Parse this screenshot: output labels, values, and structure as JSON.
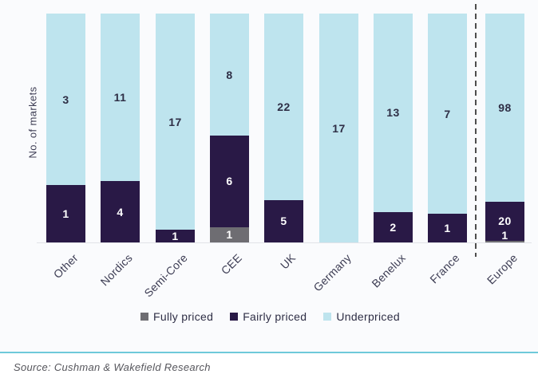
{
  "chart_data": {
    "type": "bar",
    "stacked": true,
    "normalized": "100percent",
    "title": "",
    "xlabel": "",
    "ylabel": "No. of markets",
    "categories": [
      "Other",
      "Nordics",
      "Semi-Core",
      "CEE",
      "UK",
      "Germany",
      "Benelux",
      "France",
      "Europe"
    ],
    "series": [
      {
        "name": "Fully priced",
        "color": "#6e6d72",
        "label_color": "#ffffff",
        "values": [
          0,
          0,
          0,
          1,
          0,
          0,
          0,
          0,
          1
        ]
      },
      {
        "name": "Fairly priced",
        "color": "#291946",
        "label_color": "#ffffff",
        "values": [
          1,
          4,
          1,
          6,
          5,
          0,
          2,
          1,
          20
        ]
      },
      {
        "name": "Underpriced",
        "color": "#bee4ee",
        "label_color": "#2e2e45",
        "values": [
          3,
          11,
          17,
          8,
          22,
          17,
          13,
          7,
          98
        ]
      }
    ],
    "legend_position": "bottom",
    "separator": {
      "style": "dashed",
      "color": "#4d4d4d",
      "between": [
        "France",
        "Europe"
      ]
    },
    "grid": false
  },
  "footer": {
    "source": "Source: Cushman & Wakefield Research",
    "divider_color": "#6ec9da"
  }
}
